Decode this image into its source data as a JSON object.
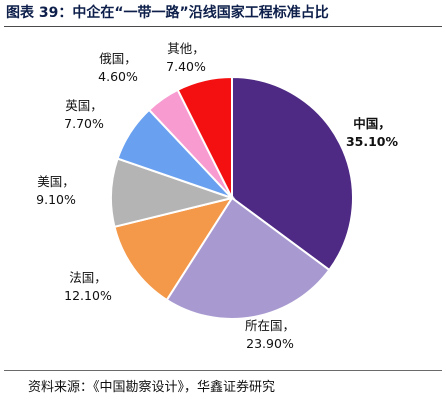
{
  "title": "图表 39：中企在“一带一路”沿线国家工程标准占比",
  "source": "资料来源：《中国勘察设计》，华鑫证券研究",
  "chart_data": {
    "type": "pie",
    "title": "图表 39：中企在“一带一路”沿线国家工程标准占比",
    "legend": "none",
    "slices": [
      {
        "name": "中国，",
        "value_label": "35.10%",
        "value": 35.1,
        "color": "#4e2a84"
      },
      {
        "name": "所在国，",
        "value_label": "23.90%",
        "value": 23.9,
        "color": "#a89ad0"
      },
      {
        "name": "法国，",
        "value_label": "12.10%",
        "value": 12.1,
        "color": "#f4994a"
      },
      {
        "name": "美国，",
        "value_label": "9.10%",
        "value": 9.1,
        "color": "#b4b4b4"
      },
      {
        "name": "英国，",
        "value_label": "7.70%",
        "value": 7.7,
        "color": "#6aa0f0"
      },
      {
        "name": "俄国，",
        "value_label": "4.60%",
        "value": 4.6,
        "color": "#f79bd0"
      },
      {
        "name": "其他，",
        "value_label": "7.40%",
        "value": 7.4,
        "color": "#f41010"
      }
    ]
  }
}
